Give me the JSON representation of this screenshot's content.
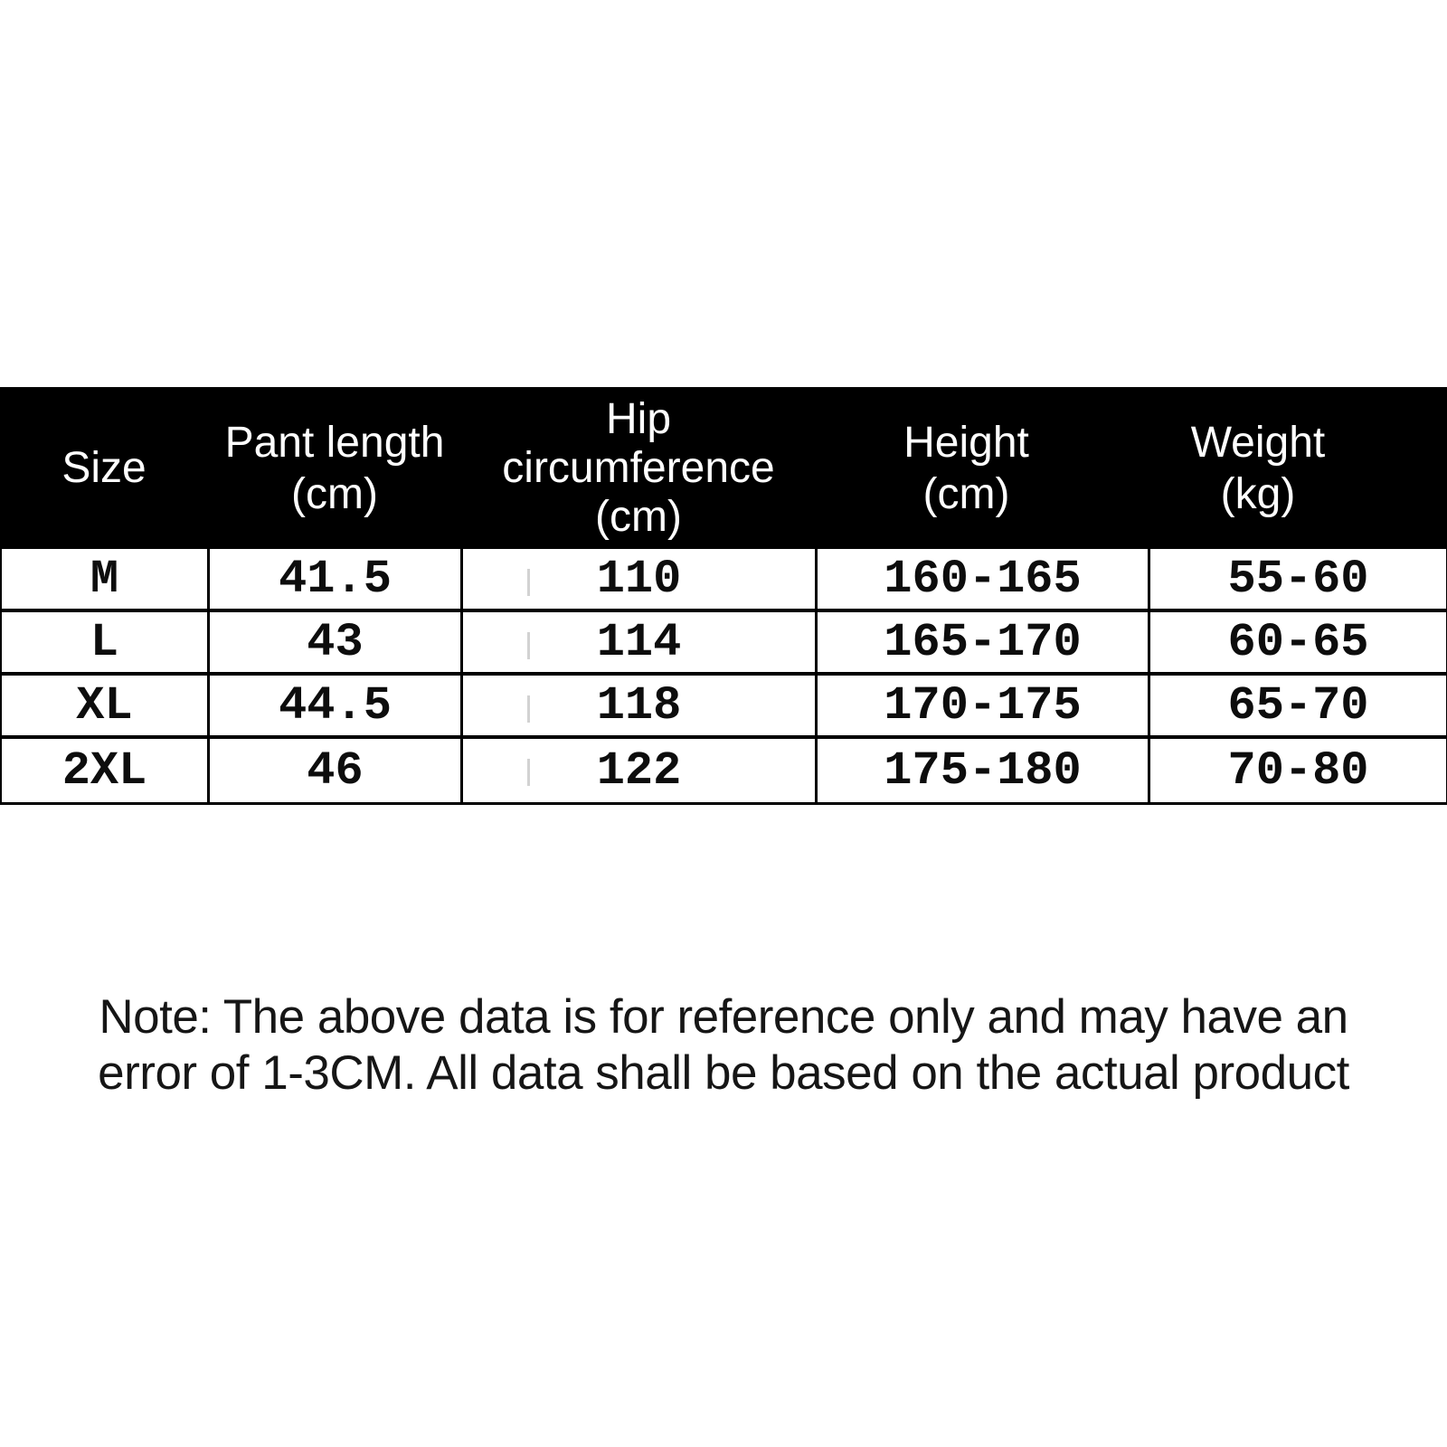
{
  "page_title": "Pants size chart",
  "colors": {
    "header_bg": "#000000",
    "header_text": "#ffffff",
    "body_text": "#0d0d0d",
    "grid_line": "#000000",
    "dashed_artifact": "#d2d2d2",
    "background": "#ffffff"
  },
  "table": {
    "columns": [
      {
        "id": "size",
        "label_lines": [
          "Size"
        ]
      },
      {
        "id": "pant_length",
        "label_lines": [
          "Pant length",
          "(cm)"
        ]
      },
      {
        "id": "hip_circumference",
        "label_lines": [
          "Hip",
          "circumference",
          "(cm)"
        ]
      },
      {
        "id": "height",
        "label_lines": [
          "Height",
          "(cm)"
        ]
      },
      {
        "id": "weight",
        "label_lines": [
          "Weight",
          "(kg)"
        ]
      }
    ],
    "rows": [
      [
        "M",
        "41.5",
        "110",
        "160-165",
        "55-60"
      ],
      [
        "L",
        "43",
        "114",
        "165-170",
        "60-65"
      ],
      [
        "XL",
        "44.5",
        "118",
        "170-175",
        "65-70"
      ],
      [
        "2XL",
        "46",
        "122",
        "175-180",
        "70-80"
      ]
    ]
  },
  "note": {
    "line1": "Note: The above data is for reference only and may have an",
    "line2": "error of 1-3CM. All data shall be based on the actual product"
  }
}
